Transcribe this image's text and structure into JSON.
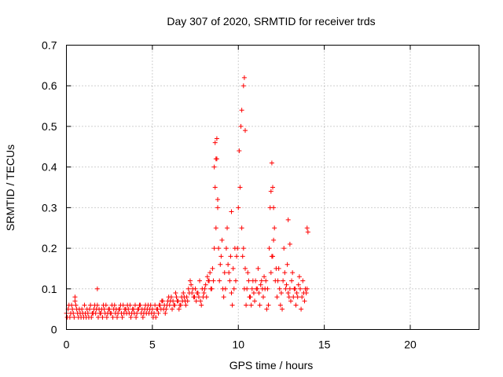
{
  "chart_data": {
    "type": "scatter",
    "title": "Day 307 of 2020, SRMTID for receiver trds",
    "xlabel": "GPS time / hours",
    "ylabel": "SRMTID / TECUs",
    "xlim": [
      0,
      24
    ],
    "ylim": [
      0,
      0.7
    ],
    "xticks": [
      0,
      5,
      10,
      15,
      20
    ],
    "yticks": [
      0,
      0.1,
      0.2,
      0.3,
      0.4,
      0.5,
      0.6,
      0.7
    ],
    "xtick_labels": [
      "0",
      "5",
      "10",
      "15",
      "20"
    ],
    "ytick_labels": [
      "0",
      "0.1",
      "0.2",
      "0.3",
      "0.4",
      "0.5",
      "0.6",
      "0.7"
    ],
    "grid": true,
    "marker": "+",
    "color": "#ff0000",
    "series": [
      {
        "name": "trds",
        "x": [
          0.0,
          0.1,
          0.2,
          0.3,
          0.4,
          0.5,
          0.6,
          0.7,
          0.8,
          0.9,
          1.0,
          1.1,
          1.2,
          1.3,
          1.4,
          1.5,
          1.6,
          1.7,
          1.8,
          1.9,
          2.0,
          2.1,
          2.2,
          2.3,
          2.4,
          2.5,
          2.6,
          2.7,
          2.8,
          2.9,
          3.0,
          3.1,
          3.2,
          3.3,
          3.4,
          3.5,
          3.6,
          3.7,
          3.8,
          3.9,
          4.0,
          4.1,
          4.2,
          4.3,
          4.4,
          4.5,
          4.6,
          4.7,
          4.8,
          4.9,
          5.0,
          5.1,
          5.2,
          5.3,
          5.4,
          5.5,
          5.6,
          5.7,
          5.8,
          5.9,
          6.0,
          6.1,
          6.2,
          6.3,
          6.4,
          6.5,
          6.6,
          6.7,
          6.8,
          6.9,
          7.0,
          7.1,
          7.2,
          7.3,
          7.4,
          7.5,
          7.6,
          7.7,
          7.8,
          7.9,
          8.0,
          8.1,
          8.2,
          8.3,
          8.4,
          8.5,
          8.6,
          8.7,
          8.8,
          8.9,
          9.0,
          9.1,
          9.2,
          9.3,
          9.4,
          9.5,
          9.6,
          9.7,
          9.8,
          9.9,
          10.0,
          10.1,
          10.2,
          10.3,
          10.4,
          10.5,
          10.6,
          10.7,
          10.8,
          10.9,
          11.0,
          11.1,
          11.2,
          11.3,
          11.4,
          11.5,
          11.6,
          11.7,
          11.8,
          11.9,
          12.0,
          12.1,
          12.2,
          12.3,
          12.4,
          12.5,
          12.6,
          12.7,
          12.8,
          12.9,
          13.0,
          13.1,
          13.2,
          13.3,
          13.4,
          13.5,
          13.6,
          13.7,
          13.8,
          13.9,
          14.0,
          0.05,
          0.15,
          0.25,
          0.35,
          0.45,
          0.55,
          0.65,
          0.75,
          0.85,
          0.95,
          1.05,
          1.15,
          1.25,
          1.35,
          1.45,
          1.55,
          1.65,
          1.75,
          1.85,
          1.95,
          2.05,
          2.15,
          2.25,
          2.35,
          2.45,
          2.55,
          2.65,
          2.75,
          2.85,
          2.95,
          3.05,
          3.15,
          3.25,
          3.35,
          3.45,
          3.55,
          3.65,
          3.75,
          3.85,
          3.95,
          4.05,
          4.15,
          4.25,
          4.35,
          4.45,
          4.55,
          4.65,
          4.75,
          4.85,
          4.95,
          5.05,
          5.15,
          5.25,
          5.35,
          5.45,
          5.55,
          5.65,
          5.75,
          5.85,
          5.95,
          6.05,
          6.15,
          6.25,
          6.35,
          6.45,
          6.55,
          6.65,
          6.75,
          6.85,
          6.95,
          7.05,
          7.15,
          7.25,
          7.35,
          7.45,
          7.55,
          7.65,
          7.75,
          7.85,
          7.95,
          8.05,
          8.15,
          8.25,
          8.35,
          8.45,
          8.55,
          8.65,
          8.75,
          8.85,
          8.95,
          9.05,
          9.15,
          9.25,
          9.35,
          9.45,
          9.55,
          9.65,
          9.75,
          9.85,
          9.95,
          10.05,
          10.15,
          10.25,
          10.35,
          10.45,
          10.55,
          10.65,
          10.75,
          10.85,
          10.95,
          11.05,
          11.15,
          11.25,
          11.35,
          11.45,
          11.55,
          11.65,
          11.75,
          11.85,
          11.95,
          12.05,
          12.15,
          12.25,
          12.35,
          12.45,
          12.55,
          12.65,
          12.75,
          12.85,
          12.95,
          13.05,
          13.15,
          13.25,
          13.35,
          13.45,
          13.55,
          13.65,
          13.75,
          13.85,
          13.95,
          8.6,
          8.65,
          8.7,
          8.75,
          8.8,
          9.6,
          10.3,
          10.35,
          10.4,
          10.2,
          11.9,
          11.95,
          12.0,
          12.05,
          12.9,
          13.0,
          14.0,
          14.05,
          0.5,
          1.8
        ],
        "y": [
          0.04,
          0.05,
          0.03,
          0.06,
          0.04,
          0.07,
          0.05,
          0.03,
          0.04,
          0.05,
          0.03,
          0.04,
          0.05,
          0.03,
          0.06,
          0.04,
          0.05,
          0.04,
          0.06,
          0.05,
          0.04,
          0.03,
          0.05,
          0.06,
          0.04,
          0.05,
          0.04,
          0.03,
          0.06,
          0.05,
          0.04,
          0.05,
          0.04,
          0.06,
          0.05,
          0.04,
          0.05,
          0.06,
          0.04,
          0.05,
          0.06,
          0.04,
          0.05,
          0.06,
          0.05,
          0.04,
          0.06,
          0.05,
          0.04,
          0.06,
          0.05,
          0.04,
          0.03,
          0.05,
          0.06,
          0.05,
          0.07,
          0.06,
          0.05,
          0.07,
          0.06,
          0.08,
          0.07,
          0.06,
          0.08,
          0.07,
          0.06,
          0.08,
          0.09,
          0.07,
          0.08,
          0.1,
          0.12,
          0.09,
          0.08,
          0.1,
          0.09,
          0.08,
          0.07,
          0.1,
          0.09,
          0.11,
          0.13,
          0.12,
          0.1,
          0.15,
          0.2,
          0.25,
          0.3,
          0.12,
          0.18,
          0.1,
          0.14,
          0.2,
          0.16,
          0.12,
          0.09,
          0.15,
          0.2,
          0.18,
          0.3,
          0.35,
          0.25,
          0.2,
          0.15,
          0.1,
          0.12,
          0.08,
          0.1,
          0.09,
          0.12,
          0.1,
          0.09,
          0.11,
          0.1,
          0.13,
          0.12,
          0.1,
          0.2,
          0.14,
          0.18,
          0.25,
          0.15,
          0.12,
          0.1,
          0.09,
          0.12,
          0.14,
          0.11,
          0.09,
          0.1,
          0.12,
          0.08,
          0.1,
          0.09,
          0.11,
          0.1,
          0.08,
          0.09,
          0.1,
          0.1,
          0.03,
          0.06,
          0.04,
          0.05,
          0.03,
          0.06,
          0.04,
          0.05,
          0.03,
          0.04,
          0.06,
          0.03,
          0.04,
          0.05,
          0.03,
          0.04,
          0.06,
          0.05,
          0.03,
          0.04,
          0.05,
          0.06,
          0.04,
          0.03,
          0.05,
          0.04,
          0.06,
          0.05,
          0.04,
          0.03,
          0.05,
          0.06,
          0.03,
          0.04,
          0.05,
          0.06,
          0.04,
          0.03,
          0.05,
          0.04,
          0.03,
          0.05,
          0.06,
          0.04,
          0.03,
          0.05,
          0.04,
          0.06,
          0.05,
          0.04,
          0.03,
          0.06,
          0.05,
          0.04,
          0.06,
          0.07,
          0.05,
          0.04,
          0.06,
          0.08,
          0.07,
          0.05,
          0.06,
          0.09,
          0.07,
          0.05,
          0.06,
          0.07,
          0.08,
          0.06,
          0.07,
          0.09,
          0.11,
          0.1,
          0.08,
          0.07,
          0.09,
          0.12,
          0.06,
          0.08,
          0.1,
          0.08,
          0.12,
          0.14,
          0.1,
          0.12,
          0.35,
          0.42,
          0.2,
          0.16,
          0.22,
          0.08,
          0.1,
          0.25,
          0.14,
          0.18,
          0.06,
          0.1,
          0.12,
          0.2,
          0.44,
          0.5,
          0.18,
          0.1,
          0.06,
          0.14,
          0.08,
          0.06,
          0.12,
          0.07,
          0.1,
          0.15,
          0.06,
          0.12,
          0.08,
          0.1,
          0.05,
          0.06,
          0.3,
          0.18,
          0.22,
          0.12,
          0.08,
          0.15,
          0.06,
          0.05,
          0.2,
          0.1,
          0.16,
          0.08,
          0.07,
          0.14,
          0.1,
          0.06,
          0.08,
          0.13,
          0.05,
          0.12,
          0.07,
          0.09,
          0.4,
          0.46,
          0.42,
          0.47,
          0.32,
          0.29,
          0.6,
          0.62,
          0.49,
          0.54,
          0.34,
          0.41,
          0.35,
          0.3,
          0.27,
          0.21,
          0.25,
          0.24,
          0.08,
          0.1
        ]
      }
    ]
  }
}
